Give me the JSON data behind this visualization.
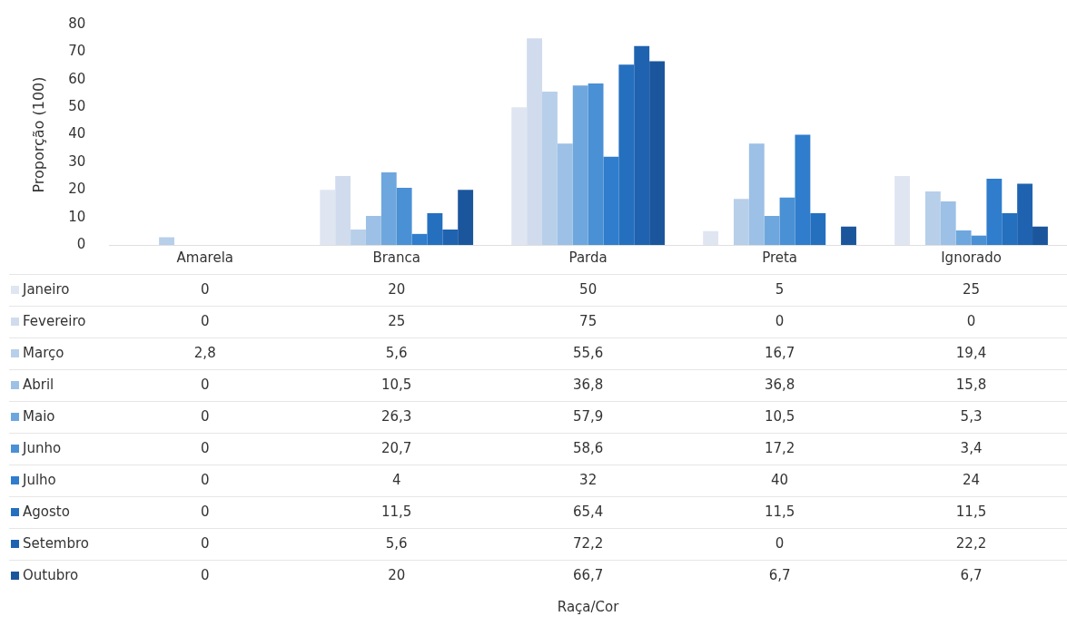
{
  "chart_data": {
    "type": "bar",
    "ylabel": "Proporção (100)",
    "annotations": [
      "Raça/Cor"
    ],
    "categories": [
      "Amarela",
      "Branca",
      "Parda",
      "Preta",
      "Ignorado"
    ],
    "ylim": [
      0,
      80
    ],
    "yticks": [
      0,
      10,
      20,
      30,
      40,
      50,
      60,
      70,
      80
    ],
    "grid": false,
    "legend": "left",
    "data_labels": true,
    "series": [
      {
        "name": "Janeiro",
        "color": "#dfe6f1",
        "values": [
          0,
          20,
          50,
          5,
          25
        ],
        "value_labels": [
          "0",
          "20",
          "50",
          "5",
          "25"
        ]
      },
      {
        "name": "Fevereiro",
        "color": "#d0dcee",
        "values": [
          0,
          25,
          75,
          0,
          0
        ],
        "value_labels": [
          "0",
          "25",
          "75",
          "0",
          "0"
        ]
      },
      {
        "name": "Março",
        "color": "#b8cfea",
        "values": [
          2.8,
          5.6,
          55.6,
          16.7,
          19.4
        ],
        "value_labels": [
          "2,8",
          "5,6",
          "55,6",
          "16,7",
          "19,4"
        ]
      },
      {
        "name": "Abril",
        "color": "#9cc0e6",
        "values": [
          0,
          10.5,
          36.8,
          36.8,
          15.8
        ],
        "value_labels": [
          "0",
          "10,5",
          "36,8",
          "36,8",
          "15,8"
        ]
      },
      {
        "name": "Maio",
        "color": "#6ea7dd",
        "values": [
          0,
          26.3,
          57.9,
          10.5,
          5.3
        ],
        "value_labels": [
          "0",
          "26,3",
          "57,9",
          "10,5",
          "5,3"
        ]
      },
      {
        "name": "Junho",
        "color": "#4a90d5",
        "values": [
          0,
          20.7,
          58.6,
          17.2,
          3.4
        ],
        "value_labels": [
          "0",
          "20,7",
          "58,6",
          "17,2",
          "3,4"
        ]
      },
      {
        "name": "Julho",
        "color": "#2f7dcc",
        "values": [
          0,
          4,
          32,
          40,
          24
        ],
        "value_labels": [
          "0",
          "4",
          "32",
          "40",
          "24"
        ]
      },
      {
        "name": "Agosto",
        "color": "#256fbf",
        "values": [
          0,
          11.5,
          65.4,
          11.5,
          11.5
        ],
        "value_labels": [
          "0",
          "11,5",
          "65,4",
          "11,5",
          "11,5"
        ]
      },
      {
        "name": "Setembro",
        "color": "#1f63b0",
        "values": [
          0,
          5.6,
          72.2,
          0,
          22.2
        ],
        "value_labels": [
          "0",
          "5,6",
          "72,2",
          "0",
          "22,2"
        ]
      },
      {
        "name": "Outubro",
        "color": "#1b569c",
        "values": [
          0,
          20,
          66.7,
          6.7,
          6.7
        ],
        "value_labels": [
          "0",
          "20",
          "66,7",
          "6,7",
          "6,7"
        ]
      }
    ]
  }
}
